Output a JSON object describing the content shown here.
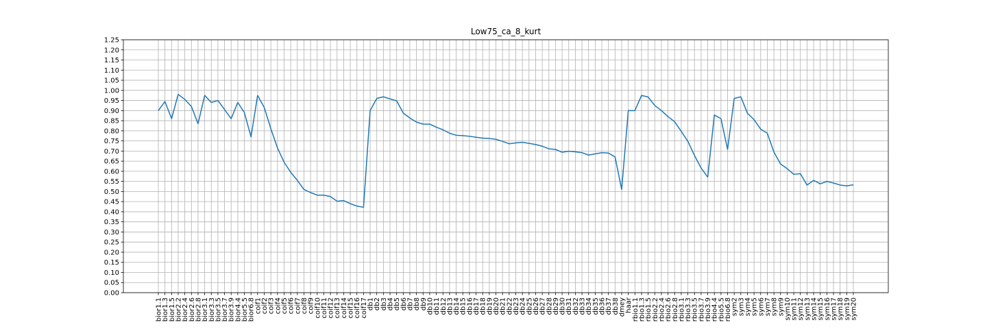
{
  "chart_data": {
    "type": "line",
    "title": "Low75_ca_8_kurt",
    "xlabel": "",
    "ylabel": "",
    "ylim": [
      0,
      1.25
    ],
    "y_tick_step": 0.05,
    "grid": true,
    "line_color": "#1f77b4",
    "categories": [
      "bior1.1",
      "bior1.3",
      "bior1.5",
      "bior2.2",
      "bior2.4",
      "bior2.6",
      "bior2.8",
      "bior3.1",
      "bior3.3",
      "bior3.5",
      "bior3.7",
      "bior3.9",
      "bior4.4",
      "bior5.5",
      "bior6.8",
      "coif1",
      "coif2",
      "coif3",
      "coif4",
      "coif5",
      "coif6",
      "coif7",
      "coif8",
      "coif9",
      "coif10",
      "coif11",
      "coif12",
      "coif13",
      "coif14",
      "coif15",
      "coif16",
      "coif17",
      "db1",
      "db2",
      "db3",
      "db4",
      "db5",
      "db6",
      "db7",
      "db8",
      "db9",
      "db10",
      "db11",
      "db12",
      "db13",
      "db14",
      "db15",
      "db16",
      "db17",
      "db18",
      "db19",
      "db20",
      "db21",
      "db22",
      "db23",
      "db24",
      "db25",
      "db26",
      "db27",
      "db28",
      "db29",
      "db30",
      "db31",
      "db32",
      "db33",
      "db34",
      "db35",
      "db36",
      "db37",
      "db38",
      "dmey",
      "haar",
      "rbio1.1",
      "rbio1.3",
      "rbio1.5",
      "rbio2.2",
      "rbio2.4",
      "rbio2.6",
      "rbio2.8",
      "rbio3.1",
      "rbio3.3",
      "rbio3.5",
      "rbio3.7",
      "rbio3.9",
      "rbio4.4",
      "rbio5.5",
      "rbio6.8",
      "sym2",
      "sym3",
      "sym4",
      "sym5",
      "sym6",
      "sym7",
      "sym8",
      "sym9",
      "sym10",
      "sym11",
      "sym12",
      "sym13",
      "sym14",
      "sym15",
      "sym16",
      "sym17",
      "sym18",
      "sym19",
      "sym20"
    ],
    "values": [
      0.9,
      0.945,
      0.86,
      0.98,
      0.955,
      0.92,
      0.835,
      0.975,
      0.94,
      0.95,
      0.905,
      0.86,
      0.94,
      0.89,
      0.77,
      0.975,
      0.915,
      0.81,
      0.715,
      0.645,
      0.595,
      0.555,
      0.51,
      0.495,
      0.482,
      0.482,
      0.475,
      0.452,
      0.455,
      0.44,
      0.428,
      0.422,
      0.9,
      0.96,
      0.968,
      0.958,
      0.948,
      0.888,
      0.863,
      0.843,
      0.833,
      0.833,
      0.818,
      0.805,
      0.788,
      0.778,
      0.776,
      0.773,
      0.768,
      0.764,
      0.762,
      0.758,
      0.748,
      0.736,
      0.74,
      0.743,
      0.738,
      0.732,
      0.724,
      0.711,
      0.708,
      0.694,
      0.699,
      0.696,
      0.692,
      0.68,
      0.686,
      0.692,
      0.69,
      0.671,
      0.51,
      0.9,
      0.9,
      0.975,
      0.967,
      0.925,
      0.9,
      0.87,
      0.845,
      0.797,
      0.748,
      0.678,
      0.616,
      0.571,
      0.878,
      0.86,
      0.708,
      0.96,
      0.968,
      0.887,
      0.855,
      0.808,
      0.788,
      0.695,
      0.636,
      0.613,
      0.585,
      0.588,
      0.532,
      0.555,
      0.538,
      0.55,
      0.542,
      0.532,
      0.528,
      0.533
    ]
  }
}
